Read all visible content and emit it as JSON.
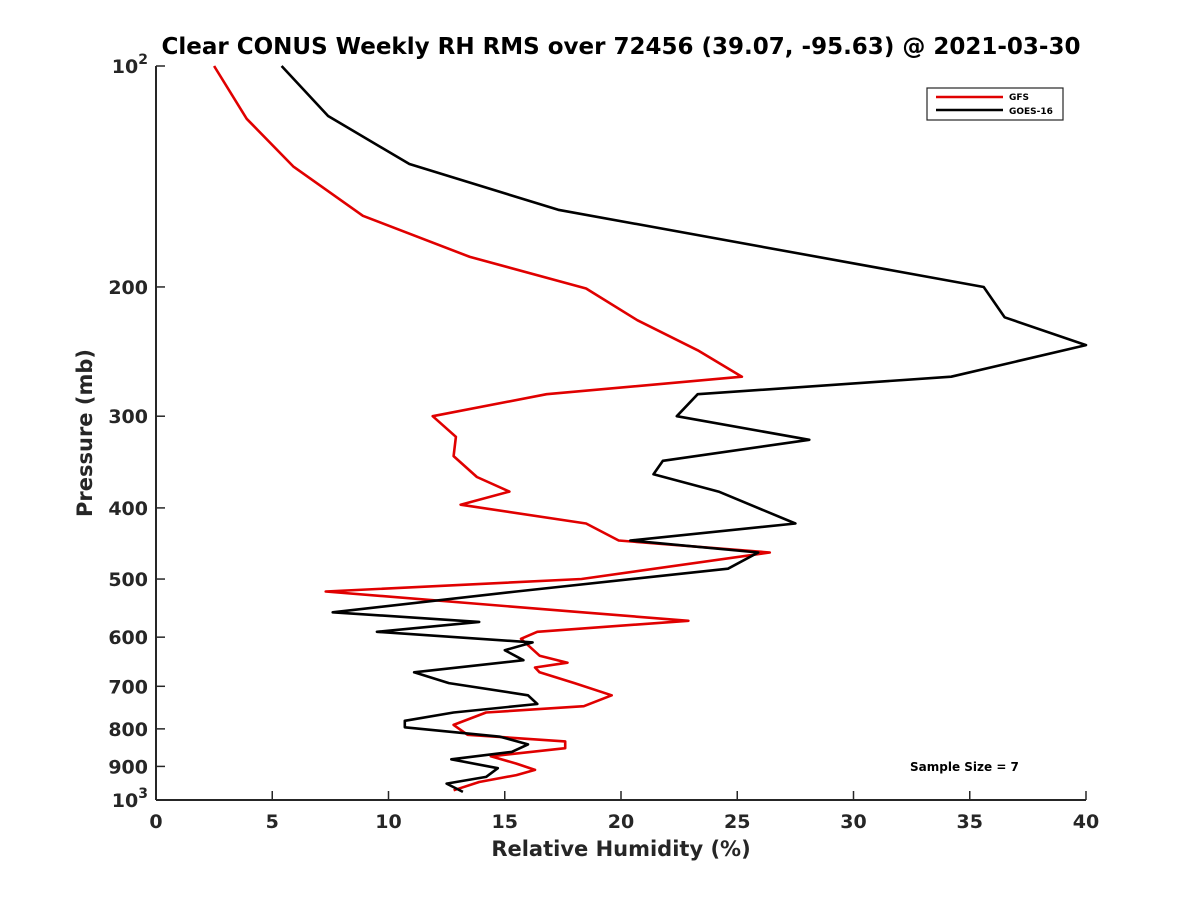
{
  "chart_data": {
    "type": "line",
    "title": "Clear CONUS Weekly RH RMS over 72456 (39.07, -95.63) @ 2021-03-30",
    "xlabel": "Relative Humidity (%)",
    "ylabel": "Pressure (mb)",
    "xlim": [
      0,
      40
    ],
    "ylim": [
      100,
      1000
    ],
    "yscale": "log",
    "y_reversed": true,
    "grid": false,
    "x_ticks": [
      0,
      5,
      10,
      15,
      20,
      25,
      30,
      35,
      40
    ],
    "x_tick_labels": [
      "0",
      "5",
      "10",
      "15",
      "20",
      "25",
      "30",
      "35",
      "40"
    ],
    "y_ticks": [
      100,
      200,
      300,
      400,
      500,
      600,
      700,
      800,
      900,
      1000
    ],
    "y_tick_labels": [
      {
        "base": "10",
        "exp": "2"
      },
      {
        "base": "200",
        "exp": ""
      },
      {
        "base": "300",
        "exp": ""
      },
      {
        "base": "400",
        "exp": ""
      },
      {
        "base": "500",
        "exp": ""
      },
      {
        "base": "600",
        "exp": ""
      },
      {
        "base": "700",
        "exp": ""
      },
      {
        "base": "800",
        "exp": ""
      },
      {
        "base": "900",
        "exp": ""
      },
      {
        "base": "10",
        "exp": "3"
      }
    ],
    "legend_position": "top-right",
    "annotation": "Sample Size = 7",
    "series": [
      {
        "name": "GFS",
        "color": "#e00000",
        "points": [
          [
            2.5,
            100
          ],
          [
            3.9,
            118
          ],
          [
            5.9,
            137
          ],
          [
            8.9,
            160
          ],
          [
            13.5,
            182
          ],
          [
            18.5,
            201
          ],
          [
            20.7,
            222
          ],
          [
            23.3,
            244
          ],
          [
            25.2,
            265
          ],
          [
            16.8,
            280
          ],
          [
            11.9,
            300
          ],
          [
            12.9,
            320
          ],
          [
            12.8,
            340
          ],
          [
            13.8,
            363
          ],
          [
            15.2,
            380
          ],
          [
            13.1,
            396
          ],
          [
            18.5,
            420
          ],
          [
            19.9,
            443
          ],
          [
            26.4,
            460
          ],
          [
            18.3,
            500
          ],
          [
            7.3,
            520
          ],
          [
            18.0,
            554
          ],
          [
            22.9,
            570
          ],
          [
            16.4,
            590
          ],
          [
            15.7,
            603
          ],
          [
            16.5,
            636
          ],
          [
            17.7,
            650
          ],
          [
            16.3,
            660
          ],
          [
            16.5,
            670
          ],
          [
            18.0,
            693
          ],
          [
            19.6,
            720
          ],
          [
            18.4,
            745
          ],
          [
            14.2,
            760
          ],
          [
            12.8,
            790
          ],
          [
            13.4,
            815
          ],
          [
            17.6,
            832
          ],
          [
            17.6,
            850
          ],
          [
            14.4,
            872
          ],
          [
            15.5,
            892
          ],
          [
            16.3,
            910
          ],
          [
            15.5,
            925
          ],
          [
            13.9,
            945
          ],
          [
            12.8,
            970
          ]
        ]
      },
      {
        "name": "GOES-16",
        "color": "#000000",
        "points": [
          [
            5.4,
            100
          ],
          [
            7.4,
            117
          ],
          [
            10.9,
            136
          ],
          [
            17.3,
            157
          ],
          [
            35.6,
            200
          ],
          [
            36.5,
            220
          ],
          [
            40.0,
            240
          ],
          [
            34.2,
            265
          ],
          [
            23.3,
            280
          ],
          [
            22.4,
            300
          ],
          [
            28.1,
            323
          ],
          [
            21.8,
            345
          ],
          [
            21.4,
            360
          ],
          [
            24.2,
            380
          ],
          [
            27.5,
            420
          ],
          [
            20.4,
            443
          ],
          [
            25.9,
            460
          ],
          [
            24.6,
            484
          ],
          [
            15.5,
            520
          ],
          [
            7.6,
            555
          ],
          [
            13.9,
            572
          ],
          [
            9.5,
            590
          ],
          [
            16.2,
            610
          ],
          [
            15.0,
            625
          ],
          [
            15.8,
            645
          ],
          [
            11.1,
            670
          ],
          [
            12.6,
            693
          ],
          [
            16.0,
            720
          ],
          [
            16.4,
            740
          ],
          [
            12.8,
            760
          ],
          [
            10.7,
            780
          ],
          [
            10.7,
            796
          ],
          [
            14.8,
            820
          ],
          [
            16.0,
            840
          ],
          [
            15.3,
            860
          ],
          [
            12.7,
            880
          ],
          [
            14.7,
            905
          ],
          [
            14.2,
            930
          ],
          [
            12.5,
            950
          ],
          [
            13.2,
            975
          ]
        ]
      }
    ]
  }
}
